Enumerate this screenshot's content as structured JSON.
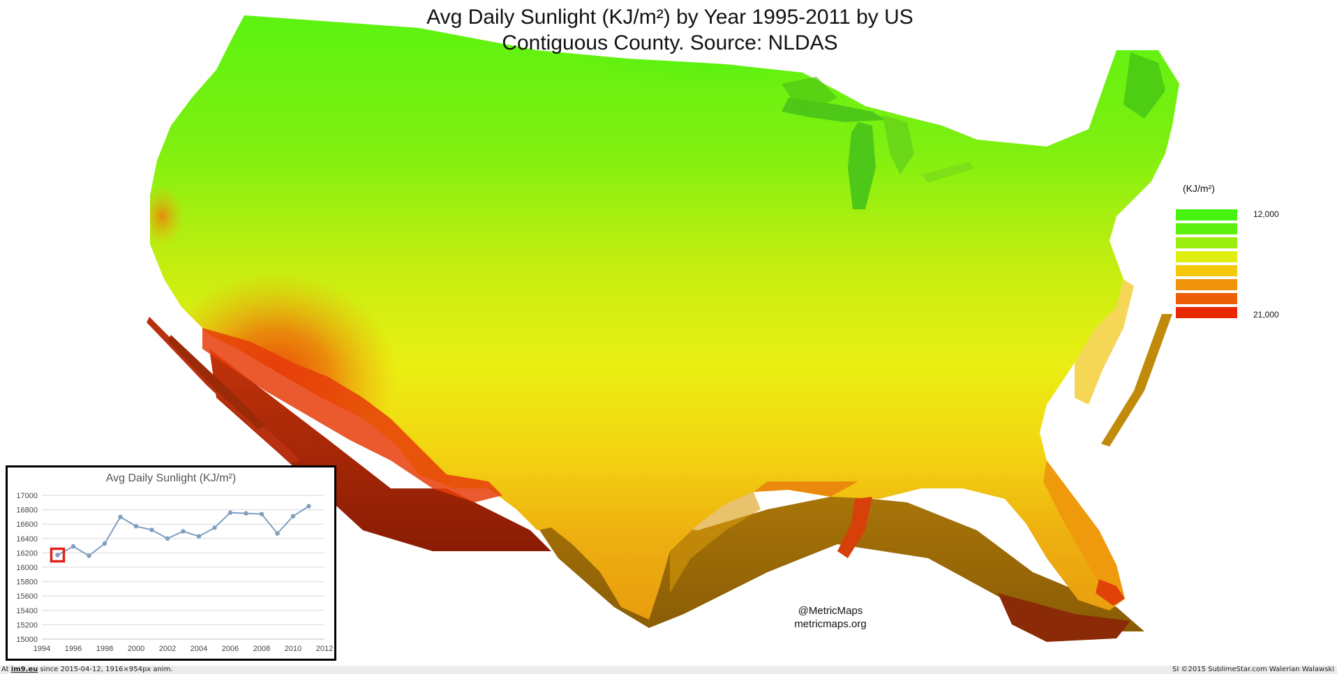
{
  "title": {
    "line1": "Avg Daily Sunlight (KJ/m²) by Year 1995-2011 by US",
    "line2": "Contiguous County. Source: NLDAS"
  },
  "legend": {
    "title": "(KJ/m²)",
    "max_label": "12,000",
    "min_label": "21,000",
    "colors": [
      "#46f30f",
      "#5ef00f",
      "#9cee10",
      "#e0ee10",
      "#f5c80c",
      "#ef930a",
      "#ec5e08",
      "#e82a04"
    ]
  },
  "credit": {
    "line1": "@MetricMaps",
    "line2": "metricmaps.org"
  },
  "footer": {
    "left_prefix": "At ",
    "left_site": "im9.eu",
    "left_suffix": " since 2015-04-12, 1916×954px anim.",
    "right": "SI ©2015 SublimeStar.com Walerian Walawski"
  },
  "chart_data": {
    "type": "line",
    "title": "Avg Daily Sunlight (KJ/m²)",
    "x": [
      1995,
      1996,
      1997,
      1998,
      1999,
      2000,
      2001,
      2002,
      2003,
      2004,
      2005,
      2006,
      2007,
      2008,
      2009,
      2010,
      2011
    ],
    "series": [
      {
        "values": [
          16170,
          16290,
          16160,
          16330,
          16700,
          16570,
          16520,
          16400,
          16500,
          16430,
          16550,
          16760,
          16750,
          16740,
          16470,
          16710,
          16850
        ]
      }
    ],
    "highlighted_x": 1995,
    "xlim": [
      1994,
      2012
    ],
    "ylim": [
      15000,
      17000
    ],
    "xticks": [
      1994,
      1996,
      1998,
      2000,
      2002,
      2004,
      2006,
      2008,
      2010,
      2012
    ],
    "yticks": [
      15000,
      15200,
      15400,
      15600,
      15800,
      16000,
      16200,
      16400,
      16600,
      16800,
      17000
    ],
    "grid": true,
    "line_color": "#7f9fbf",
    "highlight_color": "#e0201a"
  }
}
